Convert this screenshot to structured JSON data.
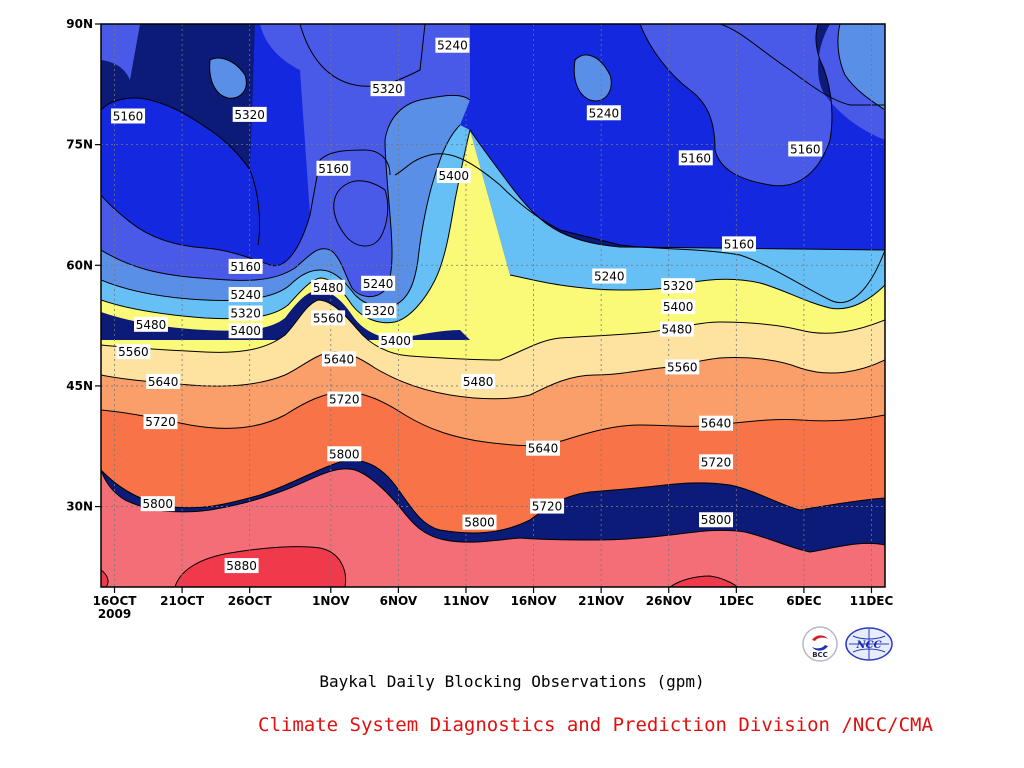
{
  "chart_data": {
    "type": "contour",
    "subtitle": "Baykal Daily Blocking Observations (gpm)",
    "credit": "Climate System Diagnostics and Prediction Division /NCC/CMA",
    "x_ticks": [
      {
        "label": "16OCT",
        "sub": "2009",
        "day": 0
      },
      {
        "label": "21OCT",
        "day": 5
      },
      {
        "label": "26OCT",
        "day": 10
      },
      {
        "label": "1NOV",
        "day": 16
      },
      {
        "label": "6NOV",
        "day": 21
      },
      {
        "label": "11NOV",
        "day": 26
      },
      {
        "label": "16NOV",
        "day": 31
      },
      {
        "label": "21NOV",
        "day": 36
      },
      {
        "label": "26NOV",
        "day": 41
      },
      {
        "label": "1DEC",
        "day": 46
      },
      {
        "label": "6DEC",
        "day": 51
      },
      {
        "label": "11DEC",
        "day": 56
      }
    ],
    "xlim": [
      -1,
      57
    ],
    "y_ticks": [
      {
        "label": "30N",
        "lat": 30
      },
      {
        "label": "45N",
        "lat": 45
      },
      {
        "label": "60N",
        "lat": 60
      },
      {
        "label": "75N",
        "lat": 75
      },
      {
        "label": "90N",
        "lat": 90
      }
    ],
    "ylim": [
      20,
      90
    ],
    "contour_levels": [
      5160,
      5240,
      5320,
      5400,
      5480,
      5560,
      5640,
      5720,
      5800,
      5880
    ],
    "fill_colors": {
      "5160": "#0c1a78",
      "5240": "#1428e0",
      "5320": "#4a5ae8",
      "5400": "#5a8fe8",
      "5480": "#66c0f6",
      "5560": "#fafa78",
      "5640": "#fde2a0",
      "5720": "#fa9e6a",
      "5800": "#f87448",
      "5880": "#f46e78",
      "above_5880": "#f03a4c"
    },
    "contour_labels": [
      {
        "text": "5160",
        "day": 1.0,
        "lat": 78.5
      },
      {
        "text": "5320",
        "day": 10.0,
        "lat": 78.7
      },
      {
        "text": "5240",
        "day": 25.0,
        "lat": 87.3
      },
      {
        "text": "5320",
        "day": 20.2,
        "lat": 81.9
      },
      {
        "text": "5160",
        "day": 16.2,
        "lat": 72.0
      },
      {
        "text": "5400",
        "day": 25.1,
        "lat": 71.1
      },
      {
        "text": "5240",
        "day": 36.2,
        "lat": 78.9
      },
      {
        "text": "5160",
        "day": 43.0,
        "lat": 73.3
      },
      {
        "text": "5160",
        "day": 51.1,
        "lat": 74.4
      },
      {
        "text": "5160",
        "day": 46.2,
        "lat": 62.6
      },
      {
        "text": "5160",
        "day": 9.7,
        "lat": 59.8
      },
      {
        "text": "5240",
        "day": 9.7,
        "lat": 56.3
      },
      {
        "text": "5320",
        "day": 9.7,
        "lat": 54.0
      },
      {
        "text": "5400",
        "day": 9.7,
        "lat": 51.8
      },
      {
        "text": "5480",
        "day": 2.7,
        "lat": 52.6
      },
      {
        "text": "5560",
        "day": 1.4,
        "lat": 49.2
      },
      {
        "text": "5640",
        "day": 3.6,
        "lat": 45.5
      },
      {
        "text": "5720",
        "day": 3.4,
        "lat": 40.5
      },
      {
        "text": "5800",
        "day": 3.2,
        "lat": 30.3
      },
      {
        "text": "5880",
        "day": 9.4,
        "lat": 22.6
      },
      {
        "text": "5480",
        "day": 15.8,
        "lat": 57.2
      },
      {
        "text": "5560",
        "day": 15.8,
        "lat": 53.4
      },
      {
        "text": "5240",
        "day": 19.5,
        "lat": 57.7
      },
      {
        "text": "5320",
        "day": 19.6,
        "lat": 54.3
      },
      {
        "text": "5400",
        "day": 20.8,
        "lat": 50.6
      },
      {
        "text": "5640",
        "day": 16.6,
        "lat": 48.3
      },
      {
        "text": "5720",
        "day": 17.0,
        "lat": 43.3
      },
      {
        "text": "5800",
        "day": 17.0,
        "lat": 36.5
      },
      {
        "text": "5480",
        "day": 26.9,
        "lat": 45.5
      },
      {
        "text": "5640",
        "day": 31.7,
        "lat": 37.2
      },
      {
        "text": "5720",
        "day": 32.0,
        "lat": 30.0
      },
      {
        "text": "5800",
        "day": 27.0,
        "lat": 28.0
      },
      {
        "text": "5240",
        "day": 36.6,
        "lat": 58.6
      },
      {
        "text": "5320",
        "day": 41.7,
        "lat": 57.4
      },
      {
        "text": "5400",
        "day": 41.7,
        "lat": 54.8
      },
      {
        "text": "5480",
        "day": 41.6,
        "lat": 52.0
      },
      {
        "text": "5560",
        "day": 42.0,
        "lat": 47.3
      },
      {
        "text": "5640",
        "day": 44.5,
        "lat": 40.3
      },
      {
        "text": "5720",
        "day": 44.5,
        "lat": 35.5
      },
      {
        "text": "5800",
        "day": 44.5,
        "lat": 28.3
      }
    ]
  },
  "logos": {
    "bcc": {
      "name": "bcc-logo",
      "text": "BCC"
    },
    "ncc": {
      "name": "ncc-logo",
      "text": "NCC"
    }
  }
}
